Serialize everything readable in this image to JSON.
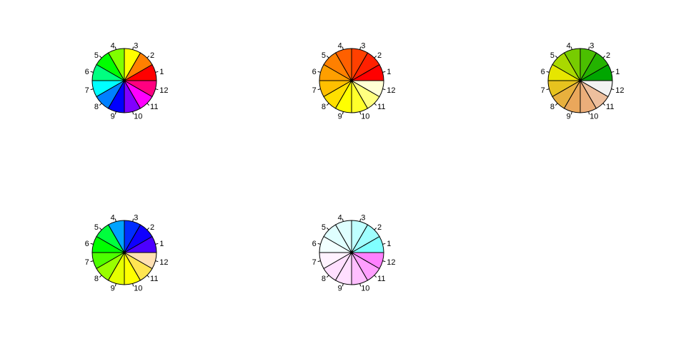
{
  "chart_data": [
    {
      "type": "pie",
      "palette": "rainbow",
      "categories": [
        "1",
        "2",
        "3",
        "4",
        "5",
        "6",
        "7",
        "8",
        "9",
        "10",
        "11",
        "12"
      ],
      "values": [
        1,
        1,
        1,
        1,
        1,
        1,
        1,
        1,
        1,
        1,
        1,
        1
      ],
      "colors": [
        "#FF0000",
        "#FF8000",
        "#FFFF00",
        "#80FF00",
        "#00FF00",
        "#00FF80",
        "#00FFFF",
        "#0080FF",
        "#0000FF",
        "#8000FF",
        "#FF00FF",
        "#FF0080"
      ]
    },
    {
      "type": "pie",
      "palette": "heat",
      "categories": [
        "1",
        "2",
        "3",
        "4",
        "5",
        "6",
        "7",
        "8",
        "9",
        "10",
        "11",
        "12"
      ],
      "values": [
        1,
        1,
        1,
        1,
        1,
        1,
        1,
        1,
        1,
        1,
        1,
        1
      ],
      "colors": [
        "#FF0000",
        "#FF2000",
        "#FF4000",
        "#FF6000",
        "#FF8000",
        "#FF9F00",
        "#FFBF00",
        "#FFDF00",
        "#FFFF00",
        "#FFFF2A",
        "#FFFF80",
        "#FFFFD5"
      ]
    },
    {
      "type": "pie",
      "palette": "terrain",
      "categories": [
        "1",
        "2",
        "3",
        "4",
        "5",
        "6",
        "7",
        "8",
        "9",
        "10",
        "11",
        "12"
      ],
      "values": [
        1,
        1,
        1,
        1,
        1,
        1,
        1,
        1,
        1,
        1,
        1,
        1
      ],
      "colors": [
        "#00A600",
        "#24B300",
        "#4BBF00",
        "#77CC00",
        "#A9D900",
        "#E6E600",
        "#E7C31E",
        "#E8B03D",
        "#EAA75B",
        "#EBAE7A",
        "#EDBF9D",
        "#F2F2F2"
      ]
    },
    {
      "type": "pie",
      "palette": "topo",
      "categories": [
        "1",
        "2",
        "3",
        "4",
        "5",
        "6",
        "7",
        "8",
        "9",
        "10",
        "11",
        "12"
      ],
      "values": [
        1,
        1,
        1,
        1,
        1,
        1,
        1,
        1,
        1,
        1,
        1,
        1
      ],
      "colors": [
        "#4C00FF",
        "#0F00FF",
        "#002EFF",
        "#00A3FF",
        "#00FF3D",
        "#00FF00",
        "#4DFF00",
        "#99FF00",
        "#E6FF00",
        "#FFFF00",
        "#FFE552",
        "#FFE0B3"
      ]
    },
    {
      "type": "pie",
      "palette": "cm",
      "categories": [
        "1",
        "2",
        "3",
        "4",
        "5",
        "6",
        "7",
        "8",
        "9",
        "10",
        "11",
        "12"
      ],
      "values": [
        1,
        1,
        1,
        1,
        1,
        1,
        1,
        1,
        1,
        1,
        1,
        1
      ],
      "colors": [
        "#80FFFF",
        "#9FFFFF",
        "#BFFFFF",
        "#DFFFFF",
        "#DFFFFF",
        "#F2FFFF",
        "#FFF2FF",
        "#FFDFFF",
        "#FFDFFF",
        "#FFBFFF",
        "#FF9FFF",
        "#FF80FF"
      ]
    }
  ]
}
